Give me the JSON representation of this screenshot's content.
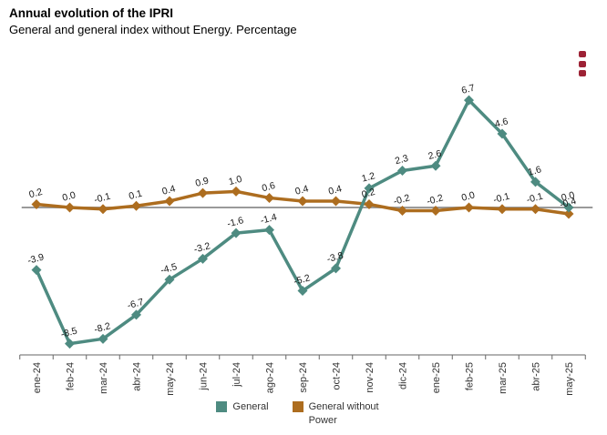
{
  "header": {
    "title": "Annual evolution of the IPRI",
    "subtitle": "General and general index without Energy. Percentage"
  },
  "menu": {
    "icon": "kebab-menu-icon",
    "color": "#9d2235"
  },
  "chart_data": {
    "type": "line",
    "title": "Annual evolution of the IPRI",
    "subtitle": "General and general index without Energy. Percentage",
    "categories": [
      "ene-24",
      "feb-24",
      "mar-24",
      "abr-24",
      "may-24",
      "jun-24",
      "jul-24",
      "ago-24",
      "sep-24",
      "oct-24",
      "nov-24",
      "dic-24",
      "ene-25",
      "feb-25",
      "mar-25",
      "abr-25",
      "may-25"
    ],
    "series": [
      {
        "name": "General",
        "color": "#4e8b81",
        "values": [
          -3.9,
          -8.5,
          -8.2,
          -6.7,
          -4.5,
          -3.2,
          -1.6,
          -1.4,
          -5.2,
          -3.8,
          1.2,
          2.3,
          2.6,
          6.7,
          4.6,
          1.6,
          0.0
        ]
      },
      {
        "name": "General without Power",
        "color": "#ad6d1f",
        "values": [
          0.2,
          0.0,
          -0.1,
          0.1,
          0.4,
          0.9,
          1.0,
          0.6,
          0.4,
          0.4,
          0.2,
          -0.2,
          -0.2,
          0.0,
          -0.1,
          -0.1,
          -0.4
        ]
      }
    ],
    "ylabel": "",
    "xlabel": "",
    "ylim": [
      -9.5,
      8.5
    ],
    "grid": false,
    "zero_line": true,
    "marker": "diamond",
    "data_labels": true,
    "legend_position": "bottom",
    "axis_color": "#666666",
    "zero_line_color": "#9a9a9a"
  },
  "legend": {
    "items": [
      {
        "label": "General",
        "color": "#4e8b81"
      },
      {
        "label": "General without Power",
        "color": "#ad6d1f"
      }
    ]
  }
}
